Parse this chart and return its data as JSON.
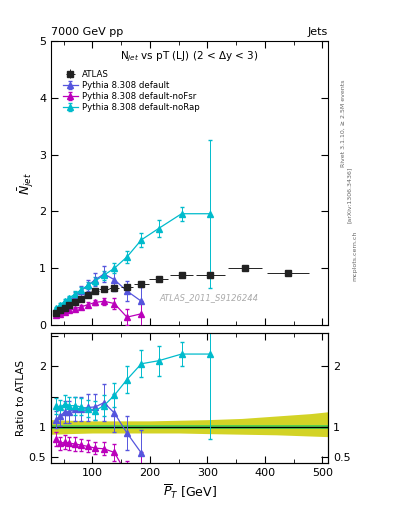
{
  "title_top": "7000 GeV pp",
  "title_top_right": "Jets",
  "plot_title": "N$_{jet}$ vs pT (LJ) (2 < $\\Delta$y < 3)",
  "watermark": "ATLAS_2011_S9126244",
  "rivet_label": "Rivet 3.1.10, ≥ 2.5M events",
  "arxiv_label": "[arXiv:1306.3436]",
  "mcplots_label": "mcplots.cern.ch",
  "ylabel_main": "$\\bar{N}_{jet}$",
  "ylabel_ratio": "Ratio to ATLAS",
  "xlabel": "$\\overline{P}_T$ [GeV]",
  "xlim": [
    28,
    510
  ],
  "ylim_main": [
    0,
    5
  ],
  "ylim_ratio": [
    0.4,
    2.55
  ],
  "atlas_x": [
    36,
    44,
    52,
    60,
    70,
    80,
    92,
    105,
    120,
    138,
    160,
    185,
    215,
    255,
    305,
    365,
    440
  ],
  "atlas_y": [
    0.22,
    0.27,
    0.3,
    0.35,
    0.4,
    0.46,
    0.53,
    0.6,
    0.64,
    0.65,
    0.67,
    0.73,
    0.81,
    0.88,
    0.88,
    1.0,
    0.92
  ],
  "atlas_xerr": [
    4,
    4,
    4,
    4,
    5,
    5,
    6,
    7,
    8,
    9,
    11,
    13,
    16,
    20,
    25,
    30,
    37
  ],
  "atlas_yerr": [
    0.015,
    0.015,
    0.018,
    0.02,
    0.022,
    0.025,
    0.028,
    0.03,
    0.032,
    0.033,
    0.033,
    0.035,
    0.036,
    0.038,
    0.04,
    0.04,
    0.04
  ],
  "py_default_x": [
    36,
    44,
    52,
    60,
    70,
    80,
    92,
    105,
    120,
    138,
    160,
    185
  ],
  "py_default_y": [
    0.25,
    0.32,
    0.38,
    0.44,
    0.52,
    0.6,
    0.7,
    0.8,
    0.9,
    0.8,
    0.6,
    0.42
  ],
  "py_default_yerr": [
    0.03,
    0.04,
    0.05,
    0.06,
    0.07,
    0.08,
    0.1,
    0.12,
    0.14,
    0.2,
    0.18,
    0.25
  ],
  "py_nofsr_x": [
    36,
    44,
    52,
    60,
    70,
    80,
    92,
    105,
    120,
    138,
    160,
    185
  ],
  "py_nofsr_y": [
    0.18,
    0.2,
    0.23,
    0.26,
    0.29,
    0.32,
    0.36,
    0.4,
    0.42,
    0.38,
    0.14,
    0.2
  ],
  "py_nofsr_yerr": [
    0.025,
    0.028,
    0.03,
    0.033,
    0.035,
    0.038,
    0.04,
    0.05,
    0.06,
    0.09,
    0.14,
    0.22
  ],
  "py_norap_x": [
    36,
    44,
    52,
    60,
    70,
    80,
    92,
    105,
    120,
    138,
    160,
    185,
    215,
    255,
    305
  ],
  "py_norap_y": [
    0.3,
    0.36,
    0.42,
    0.48,
    0.55,
    0.62,
    0.7,
    0.78,
    0.88,
    1.0,
    1.2,
    1.5,
    1.7,
    1.96,
    1.96
  ],
  "py_norap_yerr": [
    0.025,
    0.03,
    0.035,
    0.04,
    0.045,
    0.05,
    0.06,
    0.07,
    0.08,
    0.09,
    0.1,
    0.12,
    0.15,
    0.12,
    1.3
  ],
  "ratio_default_x": [
    36,
    44,
    52,
    60,
    70,
    80,
    92,
    105,
    120,
    138,
    160,
    185
  ],
  "ratio_default_y": [
    1.12,
    1.18,
    1.25,
    1.25,
    1.3,
    1.3,
    1.32,
    1.33,
    1.4,
    1.23,
    0.9,
    0.57
  ],
  "ratio_default_yerr": [
    0.14,
    0.16,
    0.18,
    0.18,
    0.2,
    0.2,
    0.22,
    0.22,
    0.3,
    0.32,
    0.28,
    0.38
  ],
  "ratio_nofsr_x": [
    36,
    44,
    52,
    60,
    70,
    80,
    92,
    105,
    120,
    138,
    160,
    185
  ],
  "ratio_nofsr_y": [
    0.8,
    0.73,
    0.75,
    0.73,
    0.72,
    0.7,
    0.68,
    0.65,
    0.64,
    0.58,
    0.22,
    0.27
  ],
  "ratio_nofsr_yerr": [
    0.12,
    0.11,
    0.11,
    0.11,
    0.11,
    0.1,
    0.1,
    0.1,
    0.11,
    0.14,
    0.22,
    0.32
  ],
  "ratio_norap_x": [
    36,
    44,
    52,
    60,
    70,
    80,
    92,
    105,
    120,
    138,
    160,
    185,
    215,
    255,
    305
  ],
  "ratio_norap_y": [
    1.35,
    1.32,
    1.38,
    1.35,
    1.35,
    1.33,
    1.3,
    1.27,
    1.35,
    1.52,
    1.78,
    2.04,
    2.09,
    2.2,
    2.2
  ],
  "ratio_norap_yerr": [
    0.13,
    0.13,
    0.14,
    0.14,
    0.15,
    0.14,
    0.14,
    0.15,
    0.17,
    0.2,
    0.22,
    0.22,
    0.25,
    0.2,
    1.4
  ],
  "green_band_x": [
    28,
    100,
    175,
    230,
    295,
    370,
    450,
    510
  ],
  "green_band_lo": [
    0.97,
    0.97,
    0.97,
    0.97,
    0.97,
    0.97,
    0.97,
    0.97
  ],
  "green_band_hi": [
    1.03,
    1.03,
    1.03,
    1.03,
    1.03,
    1.03,
    1.03,
    1.03
  ],
  "yellow_band_x": [
    28,
    60,
    100,
    150,
    200,
    250,
    300,
    360,
    420,
    480,
    510
  ],
  "yellow_band_lo": [
    0.88,
    0.89,
    0.9,
    0.9,
    0.9,
    0.9,
    0.89,
    0.88,
    0.87,
    0.85,
    0.84
  ],
  "yellow_band_hi": [
    1.12,
    1.11,
    1.1,
    1.1,
    1.1,
    1.11,
    1.12,
    1.14,
    1.18,
    1.22,
    1.25
  ],
  "color_atlas": "#222222",
  "color_default": "#5555dd",
  "color_nofsr": "#bb00bb",
  "color_norap": "#00bbcc",
  "color_green": "#44cc55",
  "color_yellow": "#cccc00",
  "marker_size": 4
}
